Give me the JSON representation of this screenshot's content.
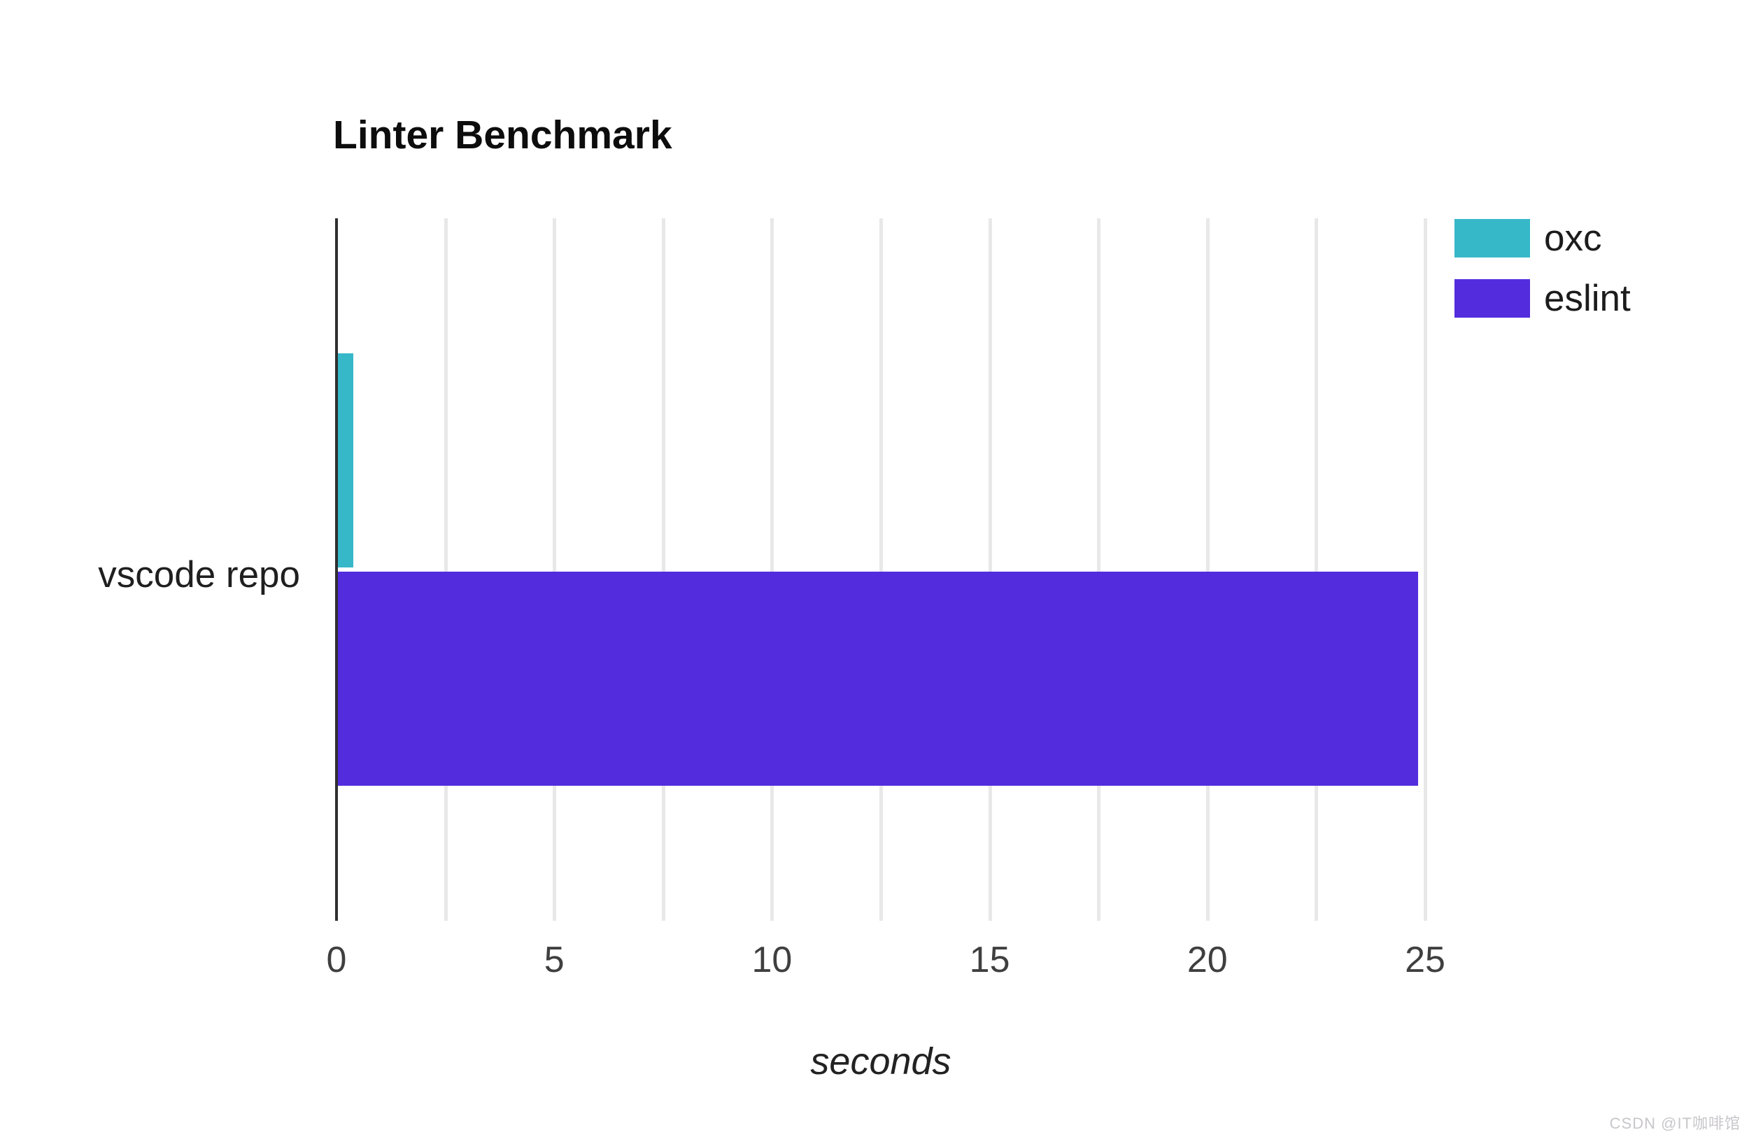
{
  "page": {
    "background": "#ffffff",
    "watermark": "CSDN @IT咖啡馆"
  },
  "chart_data": {
    "type": "bar",
    "orientation": "horizontal",
    "title": "Linter Benchmark",
    "categories": [
      "vscode repo"
    ],
    "series": [
      {
        "name": "oxc",
        "color": "#36b8c9",
        "values": [
          0.35
        ]
      },
      {
        "name": "eslint",
        "color": "#532cdd",
        "values": [
          24.8
        ]
      }
    ],
    "xlabel": "seconds",
    "xlim": [
      0,
      25
    ],
    "xticks": [
      0,
      5,
      10,
      15,
      20,
      25
    ],
    "gridline_step": 2.5,
    "grid": true,
    "legend_position": "top-right",
    "colors": {
      "axis": "#303030",
      "gridline": "#e8e8e8",
      "tick_label": "#3f3f3f",
      "title": "#0d0d0d",
      "category_label": "#1f1f1f",
      "axis_title": "#222222",
      "legend_text": "#1c1c1c",
      "watermark": "#c8c6ca"
    }
  }
}
